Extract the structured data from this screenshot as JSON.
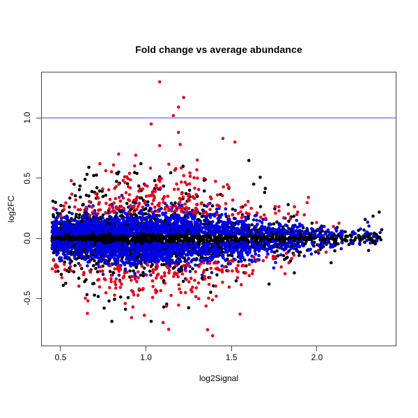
{
  "chart_data": {
    "type": "scatter",
    "title": "Fold change vs average abundance",
    "xlabel": "log2Signal",
    "ylabel": "log2FC",
    "xlim": [
      0.386,
      2.465
    ],
    "ylim": [
      -0.897,
      1.384
    ],
    "grid": false,
    "legend": "none",
    "frame_color": "#474747",
    "x_ticks": [
      {
        "value": 0.5,
        "label": "0.5"
      },
      {
        "value": 1.0,
        "label": "1.0"
      },
      {
        "value": 1.5,
        "label": "1.5"
      },
      {
        "value": 2.0,
        "label": "2.0"
      }
    ],
    "y_ticks": [
      {
        "value": -0.5,
        "label": "-0.5"
      },
      {
        "value": 0.0,
        "label": "0.0"
      },
      {
        "value": 0.5,
        "label": "0.5"
      },
      {
        "value": 1.0,
        "label": "1.0"
      }
    ],
    "hline": {
      "y": 1.0,
      "color": "#8484f0",
      "width": 1.6
    },
    "palette": {
      "black": "#000000",
      "blue": "#0000e8",
      "red": "#e3001a"
    },
    "point_radius": 2.3,
    "seed": 42,
    "x_bin_edges": [
      0.45,
      0.7,
      1.0,
      1.3,
      1.6,
      1.9,
      2.15,
      2.38
    ],
    "series": [
      {
        "label": "black-points",
        "color": "black",
        "count": 3600,
        "x_weights": [
          0.3,
          0.25,
          0.19,
          0.13,
          0.08,
          0.035,
          0.015
        ],
        "y_gap": 0,
        "y_sd": 0.085,
        "wide_frac": 0.18,
        "wide_mult": 3.2,
        "width_profile": {
          "center": 1.05,
          "sigma": 0.52,
          "floor": 0.3
        }
      },
      {
        "label": "blue-points",
        "color": "blue",
        "count": 1900,
        "x_weights": [
          0.18,
          0.24,
          0.26,
          0.18,
          0.1,
          0.03,
          0.01
        ],
        "y_gap": 0.04,
        "y_sd": 0.105,
        "wide_frac": 0,
        "wide_mult": 1,
        "width_profile": {
          "center": 1.08,
          "sigma": 0.5,
          "floor": 0.35
        }
      },
      {
        "label": "red-points",
        "color": "red",
        "count": 430,
        "x_weights": [
          0.08,
          0.27,
          0.33,
          0.22,
          0.08,
          0.02,
          0.0
        ],
        "y_gap": 0.22,
        "y_sd": 0.18,
        "wide_frac": 0,
        "wide_mult": 1,
        "width_profile": {
          "center": 1.05,
          "sigma": 0.55,
          "floor": 0.3
        }
      }
    ],
    "outlier_points": [
      {
        "x": 1.08,
        "y": 1.3,
        "color": "red"
      },
      {
        "x": 1.22,
        "y": 1.17,
        "color": "red"
      },
      {
        "x": 1.19,
        "y": 1.09,
        "color": "red"
      },
      {
        "x": 1.16,
        "y": 1.02,
        "color": "red"
      },
      {
        "x": 1.03,
        "y": 0.95,
        "color": "red"
      },
      {
        "x": 1.19,
        "y": 0.88,
        "color": "red"
      },
      {
        "x": 1.45,
        "y": 0.83,
        "color": "red"
      },
      {
        "x": 1.52,
        "y": 0.8,
        "color": "red"
      },
      {
        "x": 1.2,
        "y": 0.78,
        "color": "red"
      },
      {
        "x": 1.08,
        "y": 0.77,
        "color": "red"
      },
      {
        "x": 0.84,
        "y": 0.7,
        "color": "red"
      },
      {
        "x": 1.3,
        "y": 0.65,
        "color": "red"
      },
      {
        "x": 0.73,
        "y": 0.62,
        "color": "red"
      },
      {
        "x": 1.95,
        "y": 0.34,
        "color": "red"
      },
      {
        "x": 1.39,
        "y": -0.81,
        "color": "red"
      },
      {
        "x": 1.36,
        "y": -0.76,
        "color": "red"
      },
      {
        "x": 1.1,
        "y": -0.7,
        "color": "red"
      },
      {
        "x": 0.99,
        "y": -0.64,
        "color": "red"
      },
      {
        "x": 1.55,
        "y": -0.63,
        "color": "red"
      },
      {
        "x": 0.66,
        "y": -0.52,
        "color": "red"
      },
      {
        "x": 0.97,
        "y": 0.62,
        "color": "black"
      },
      {
        "x": 0.84,
        "y": 0.55,
        "color": "black"
      },
      {
        "x": 1.63,
        "y": 0.45,
        "color": "black"
      },
      {
        "x": 0.8,
        "y": -0.69,
        "color": "black"
      },
      {
        "x": 1.03,
        "y": -0.69,
        "color": "black"
      },
      {
        "x": 1.72,
        "y": -0.38,
        "color": "black"
      }
    ]
  }
}
